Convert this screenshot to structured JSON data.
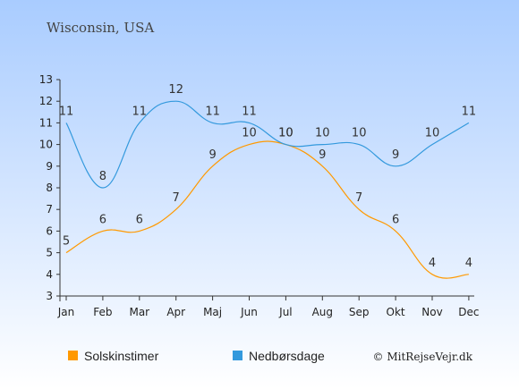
{
  "chart_data": {
    "type": "line",
    "title": "Wisconsin, USA",
    "categories": [
      "Jan",
      "Feb",
      "Mar",
      "Apr",
      "Maj",
      "Jun",
      "Jul",
      "Aug",
      "Sep",
      "Okt",
      "Nov",
      "Dec"
    ],
    "ylim": [
      3,
      13
    ],
    "yticks": [
      "3",
      "4",
      "5",
      "6",
      "7",
      "8",
      "9",
      "10",
      "11",
      "12",
      "13"
    ],
    "grid": false,
    "legend_position": "bottom-left",
    "series": [
      {
        "name": "Solskinstimer",
        "color": "#ff9900",
        "values": [
          5,
          6,
          6,
          7,
          9,
          10,
          10,
          9,
          7,
          6,
          4,
          4
        ]
      },
      {
        "name": "Nedbørsdage",
        "color": "#3399dd",
        "values": [
          11,
          8,
          11,
          12,
          11,
          11,
          10,
          10,
          10,
          9,
          10,
          11
        ]
      }
    ]
  },
  "credit": "© MitRejseVejr.dk",
  "colors": {
    "bg_top": "#a9ccff",
    "bg_bottom": "#ffffff",
    "axis": "#333333"
  }
}
